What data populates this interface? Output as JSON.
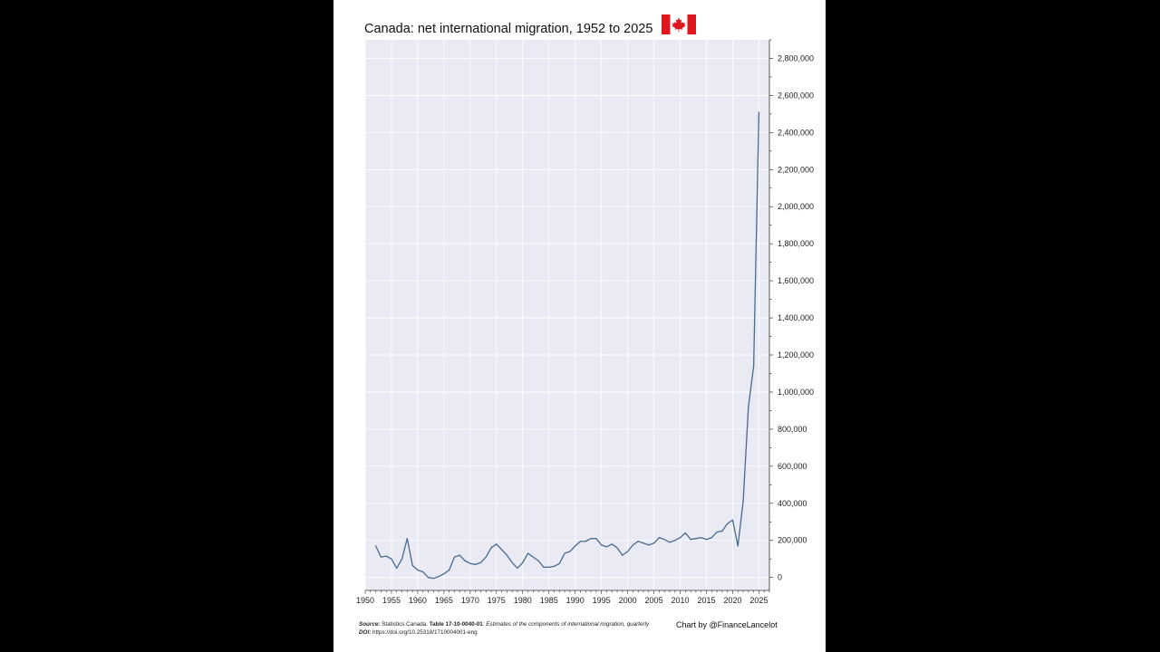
{
  "page": {
    "title": "Canada: net international migration, 1952 to 2025"
  },
  "footer": {
    "source_label": "Source:",
    "source_agency": "Statistics Canada.",
    "source_table": "Table 17-10-0040-01",
    "source_desc": ": Estimates of the components of international migration, quarterly",
    "doi_label": "DOI:",
    "doi_value": "https://doi.org/10.25318/1710004001-eng",
    "credit": "Chart by @FinanceLancelot"
  },
  "colors": {
    "plot_bg": "#e9eaf3",
    "line": "#4a6a8e",
    "flag_red": "#e0161e",
    "page_bg": "#000000",
    "card_bg": "#ffffff"
  },
  "chart_data": {
    "type": "line",
    "title": "Canada: net international migration, 1952 to 2025",
    "xlabel": "",
    "ylabel": "",
    "xlim": [
      1950,
      2027
    ],
    "ylim": [
      -70000,
      2900000
    ],
    "grid": true,
    "y_axis_side": "right",
    "x_ticks": [
      1950,
      1955,
      1960,
      1965,
      1970,
      1975,
      1980,
      1985,
      1990,
      1995,
      2000,
      2005,
      2010,
      2015,
      2020,
      2025
    ],
    "y_ticks": [
      0,
      200000,
      400000,
      600000,
      800000,
      1000000,
      1200000,
      1400000,
      1600000,
      1800000,
      2000000,
      2200000,
      2400000,
      2600000,
      2800000
    ],
    "y_tick_labels": [
      "0",
      "200,000",
      "400,000",
      "600,000",
      "800,000",
      "1,000,000",
      "1,200,000",
      "1,400,000",
      "1,600,000",
      "1,800,000",
      "2,000,000",
      "2,200,000",
      "2,400,000",
      "2,600,000",
      "2,800,000"
    ],
    "series": [
      {
        "x": [
          1952,
          1953,
          1954,
          1955,
          1956,
          1957,
          1958,
          1959,
          1960,
          1961,
          1962,
          1963,
          1964,
          1965,
          1966,
          1967,
          1968,
          1969,
          1970,
          1971,
          1972,
          1973,
          1974,
          1975,
          1976,
          1977,
          1978,
          1979,
          1980,
          1981,
          1982,
          1983,
          1984,
          1985,
          1986,
          1987,
          1988,
          1989,
          1990,
          1991,
          1992,
          1993,
          1994,
          1995,
          1996,
          1997,
          1998,
          1999,
          2000,
          2001,
          2002,
          2003,
          2004,
          2005,
          2006,
          2007,
          2008,
          2009,
          2010,
          2011,
          2012,
          2013,
          2014,
          2015,
          2016,
          2017,
          2018,
          2019,
          2020,
          2021,
          2022,
          2023,
          2024,
          2025
        ],
        "values": [
          170000,
          110000,
          115000,
          100000,
          50000,
          100000,
          210000,
          65000,
          40000,
          30000,
          0,
          -5000,
          5000,
          20000,
          40000,
          110000,
          120000,
          90000,
          75000,
          70000,
          80000,
          110000,
          160000,
          180000,
          150000,
          120000,
          80000,
          50000,
          80000,
          130000,
          110000,
          90000,
          55000,
          55000,
          60000,
          75000,
          130000,
          140000,
          170000,
          195000,
          195000,
          210000,
          210000,
          175000,
          165000,
          180000,
          160000,
          120000,
          140000,
          175000,
          195000,
          185000,
          175000,
          185000,
          215000,
          205000,
          190000,
          200000,
          215000,
          240000,
          205000,
          210000,
          215000,
          205000,
          215000,
          245000,
          250000,
          290000,
          310000,
          170000,
          410000,
          920000,
          1140000,
          2510000
        ]
      }
    ]
  }
}
